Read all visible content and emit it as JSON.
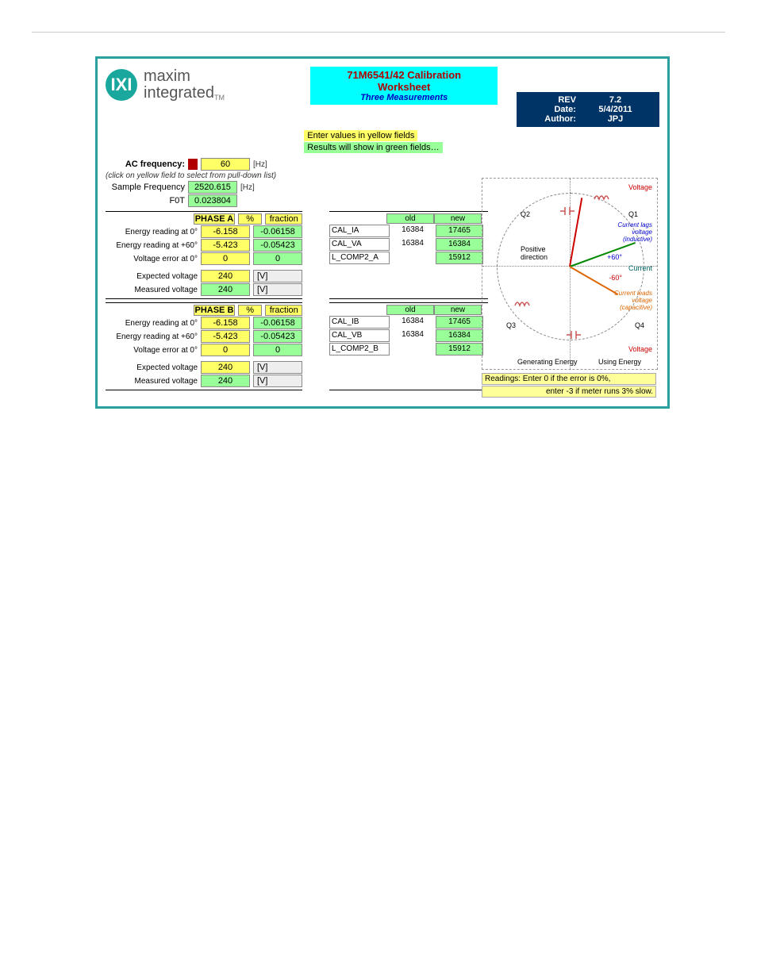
{
  "brand": {
    "l1": "maxim",
    "l2": "integrated",
    "tm": "TM",
    "mark": "IXI"
  },
  "title": {
    "line1": "71M6541/42 Calibration Worksheet",
    "line2": "Three Measurements"
  },
  "hints": {
    "yellow": "Enter values in yellow fields",
    "green": "Results will show in green fields…"
  },
  "meta": {
    "rev_lbl": "REV",
    "rev": "7.2",
    "date_lbl": "Date:",
    "date": "5/4/2011",
    "author_lbl": "Author:",
    "author": "JPJ"
  },
  "freq": {
    "ac_lbl": "AC frequency:",
    "ac_val": "60",
    "ac_unit": "[Hz]",
    "note": "(click on yellow field to select from pull-down list)",
    "samp_lbl": "Sample Frequency",
    "samp_val": "2520.615",
    "samp_unit": "[Hz]",
    "f0t_lbl": "F0T",
    "f0t_val": "0.023804"
  },
  "phaseA": {
    "name": "PHASE A",
    "col1": "%",
    "col2": "fraction",
    "rows": [
      {
        "lbl": "Energy reading at 0°",
        "p": "-6.158",
        "f": "-0.06158"
      },
      {
        "lbl": "Energy reading at +60°",
        "p": "-5.423",
        "f": "-0.05423"
      },
      {
        "lbl": "Voltage error at 0°",
        "p": "0",
        "f": "0"
      }
    ],
    "exp_lbl": "Expected voltage",
    "exp_v": "240",
    "exp_u": "[V]",
    "mea_lbl": "Measured voltage",
    "mea_v": "240",
    "mea_u": "[V]"
  },
  "phaseB": {
    "name": "PHASE B",
    "col1": "%",
    "col2": "fraction",
    "rows": [
      {
        "lbl": "Energy reading at 0°",
        "p": "-6.158",
        "f": "-0.06158"
      },
      {
        "lbl": "Energy reading at +60°",
        "p": "-5.423",
        "f": "-0.05423"
      },
      {
        "lbl": "Voltage error at 0°",
        "p": "0",
        "f": "0"
      }
    ],
    "exp_lbl": "Expected voltage",
    "exp_v": "240",
    "exp_u": "[V]",
    "mea_lbl": "Measured voltage",
    "mea_v": "240",
    "mea_u": "[V]"
  },
  "calcA": {
    "old": "old",
    "new": "new",
    "rows": [
      {
        "n": "CAL_IA",
        "o": "16384",
        "w": "17465"
      },
      {
        "n": "CAL_VA",
        "o": "16384",
        "w": "16384"
      },
      {
        "n": "L_COMP2_A",
        "o": "",
        "w": "15912"
      }
    ]
  },
  "calcB": {
    "old": "old",
    "new": "new",
    "rows": [
      {
        "n": "CAL_IB",
        "o": "16384",
        "w": "17465"
      },
      {
        "n": "CAL_VB",
        "o": "16384",
        "w": "16384"
      },
      {
        "n": "L_COMP2_B",
        "o": "",
        "w": "15912"
      }
    ]
  },
  "diagram": {
    "voltage": "Voltage",
    "current": "Current",
    "q1": "Q1",
    "q2": "Q2",
    "q3": "Q3",
    "q4": "Q4",
    "pos": "Positive",
    "dir": "direction",
    "lag": "Current lags voltage (inductive)",
    "lead": "Current leads voltage (capacitive)",
    "p60": "+60°",
    "m60": "-60°",
    "gen": "Generating Energy",
    "use": "Using Energy",
    "r1": "Readings:  Enter 0 if the error is 0%,",
    "r2": "enter -3 if meter runs 3% slow."
  }
}
